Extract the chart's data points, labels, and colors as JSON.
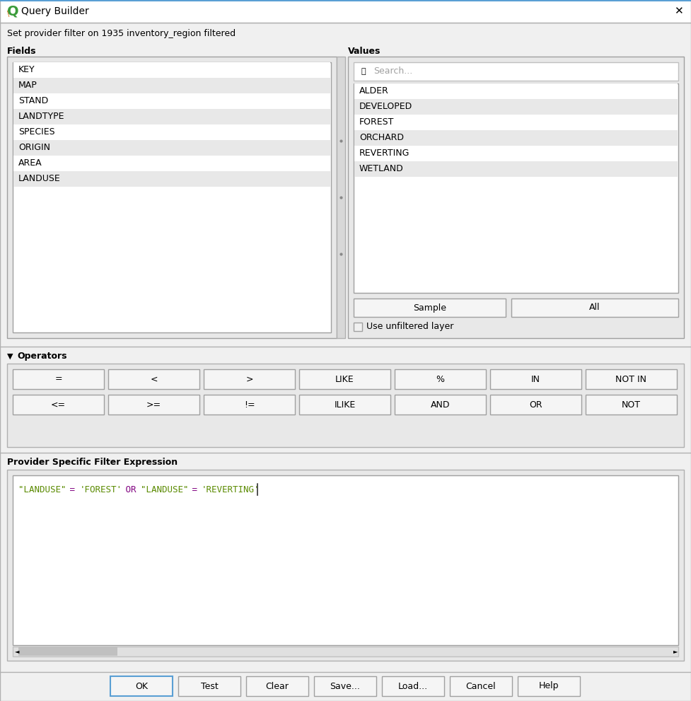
{
  "title": "Query Builder",
  "subtitle": "Set provider filter on 1935 inventory_region filtered",
  "fields_label": "Fields",
  "values_label": "Values",
  "fields": [
    "KEY",
    "MAP",
    "STAND",
    "LANDTYPE",
    "SPECIES",
    "ORIGIN",
    "AREA",
    "LANDUSE"
  ],
  "values": [
    "ALDER",
    "DEVELOPED",
    "FOREST",
    "ORCHARD",
    "REVERTING",
    "WETLAND"
  ],
  "operators_row1": [
    "=",
    "<",
    ">",
    "LIKE",
    "%",
    "IN",
    "NOT IN"
  ],
  "operators_row2": [
    "<=",
    ">=",
    "!=",
    "ILIKE",
    "AND",
    "OR",
    "NOT"
  ],
  "operators_label": "Operators",
  "filter_label": "Provider Specific Filter Expression",
  "filter_parts": [
    {
      "text": "\"LANDUSE\"",
      "color": "#5a8a00"
    },
    {
      "text": " = ",
      "color": "#800080"
    },
    {
      "text": "'FOREST'",
      "color": "#5a8a00"
    },
    {
      "text": " OR ",
      "color": "#800080"
    },
    {
      "text": "\"LANDUSE\"",
      "color": "#5a8a00"
    },
    {
      "text": " = ",
      "color": "#800080"
    },
    {
      "text": "'REVERTING'",
      "color": "#5a8a00"
    }
  ],
  "bottom_buttons": [
    "OK",
    "Test",
    "Clear",
    "Save...",
    "Load...",
    "Cancel",
    "Help"
  ],
  "bg_color": "#f0f0f0",
  "white": "#ffffff",
  "border_color": "#c0c0c0",
  "title_bar_color": "#ffffff",
  "search_placeholder": "Search...",
  "sample_button": "Sample",
  "all_button": "All",
  "unfiltered_text": "Use unfiltered layer",
  "qgis_green": "#3a9b3a",
  "ok_border_color": "#5a9fd4"
}
